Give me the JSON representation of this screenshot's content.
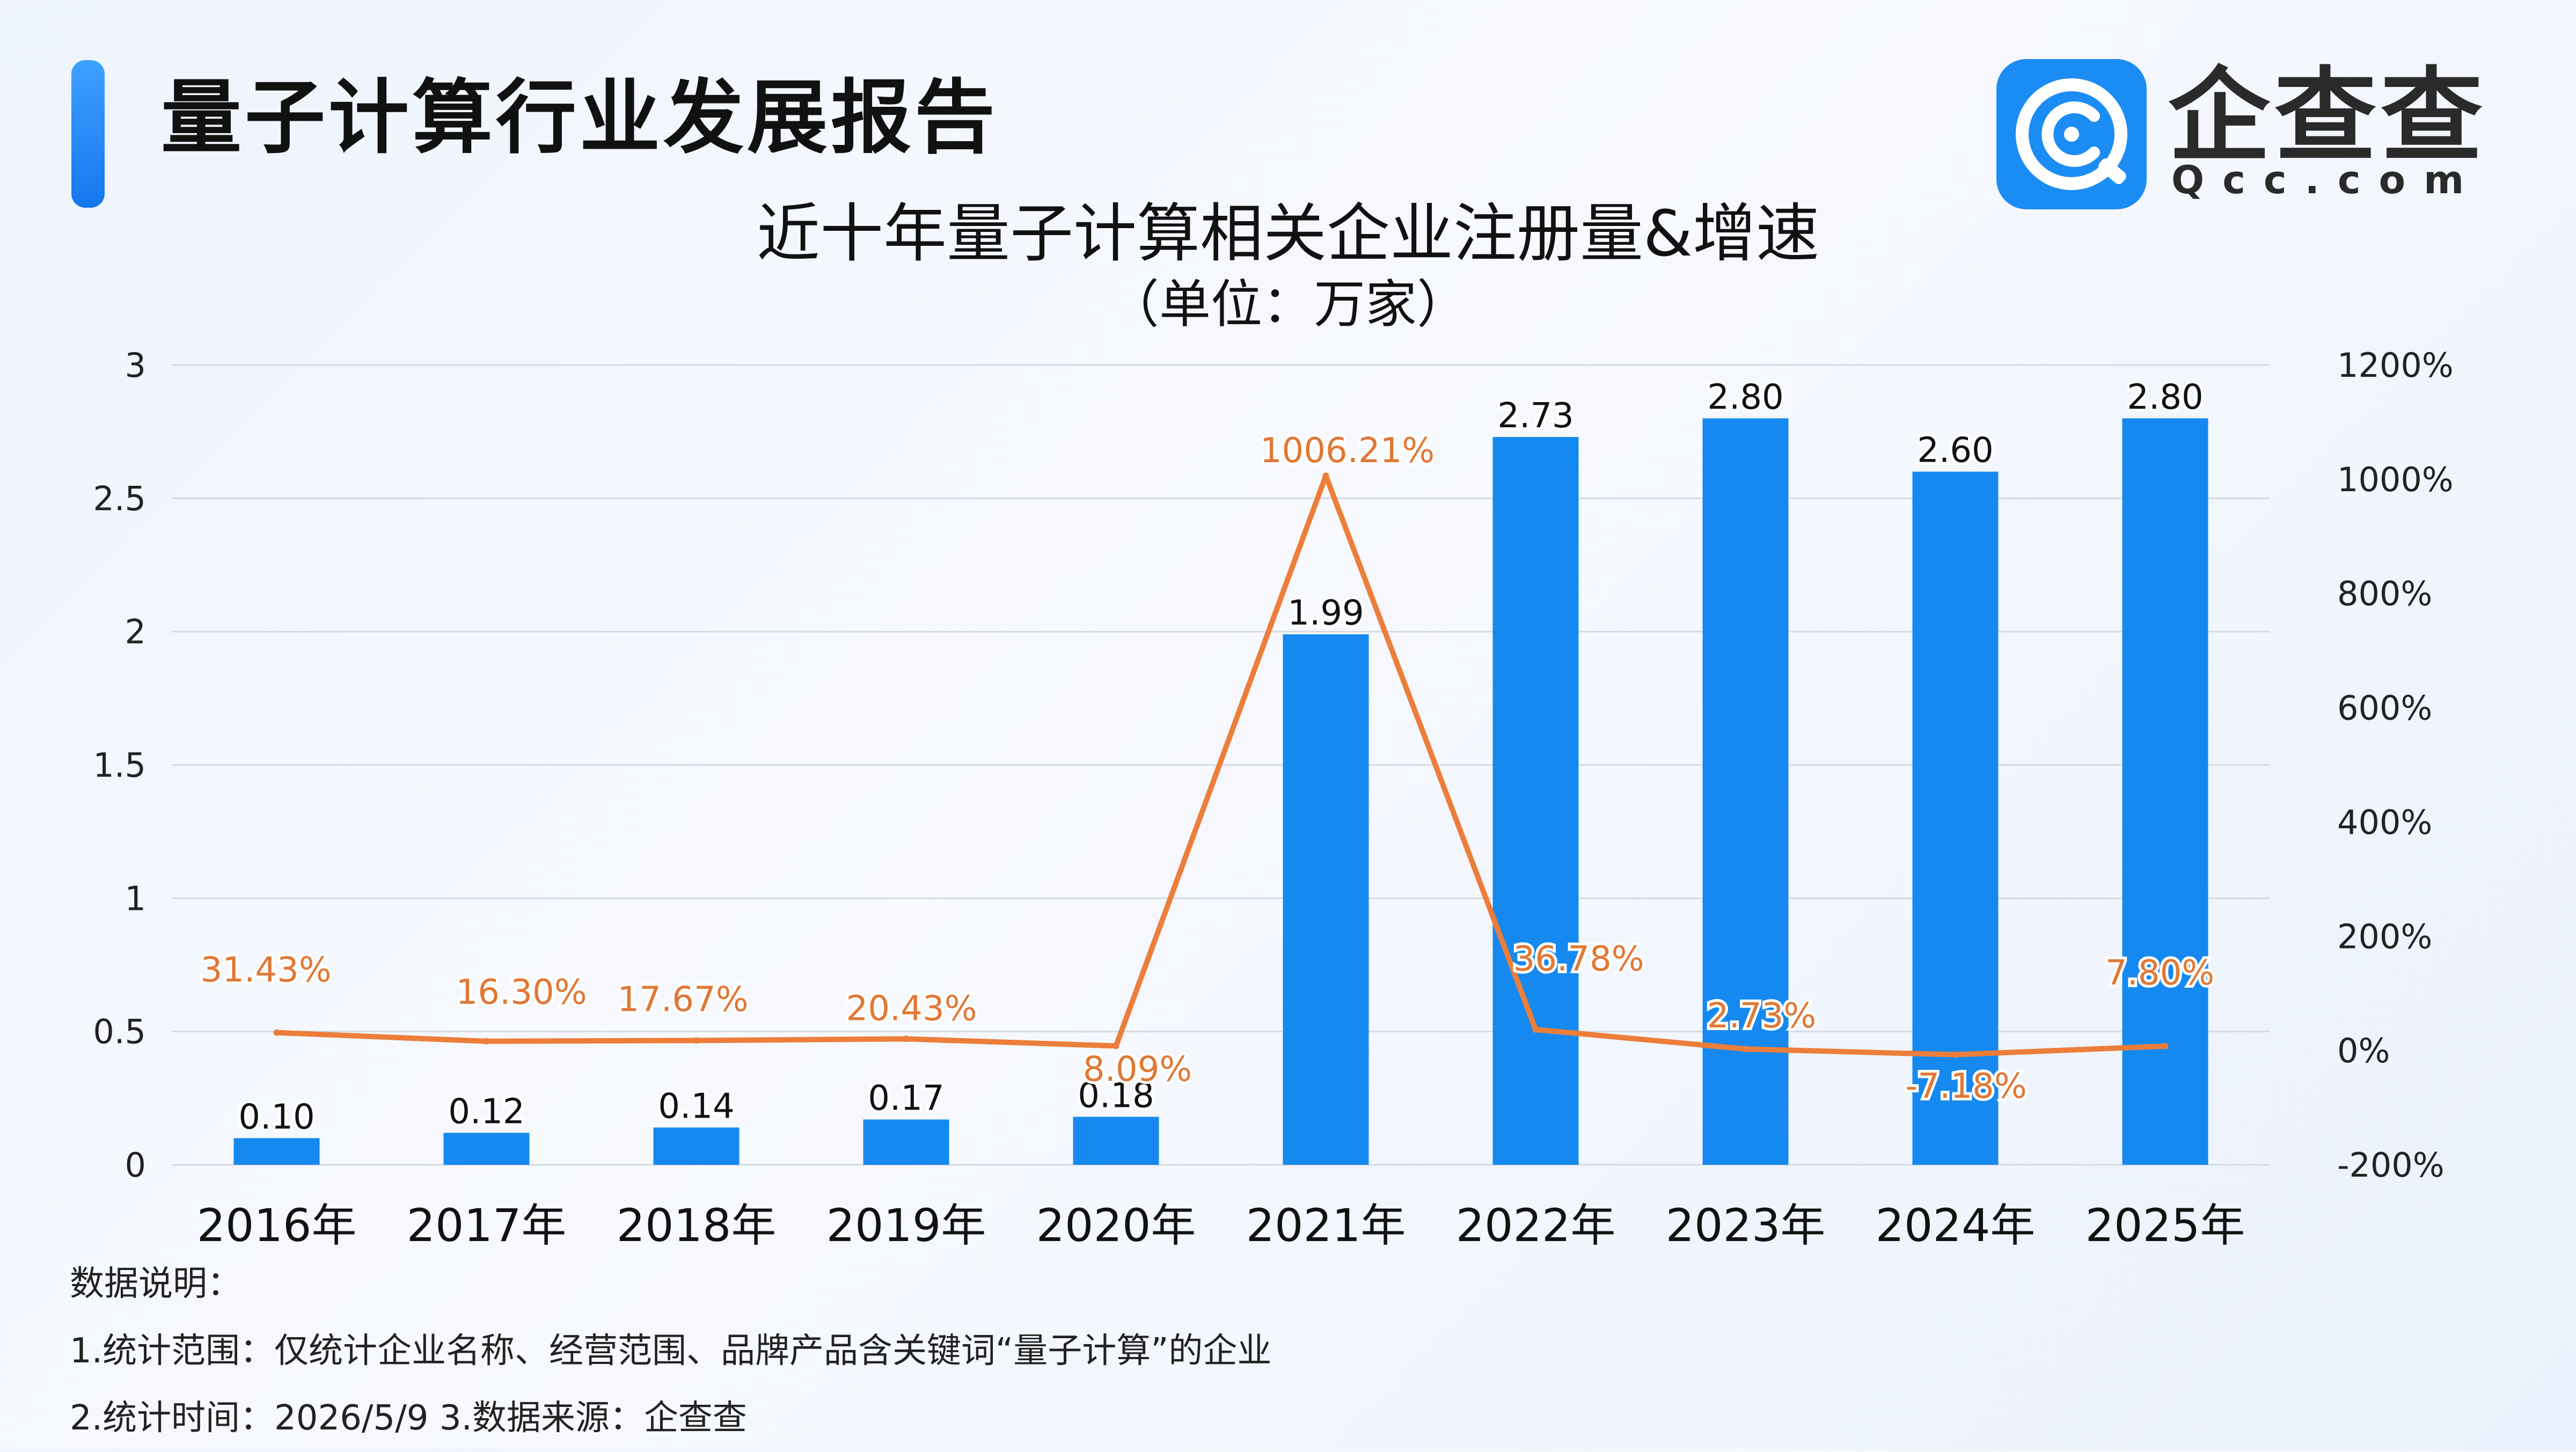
{
  "header": {
    "report_title": "量子计算行业发展报告",
    "logo_name": "企查查",
    "logo_url": "Qcc.com"
  },
  "colors": {
    "bar": "#1589ef",
    "line": "#ec7e3a",
    "line_label": "#e07835",
    "logo_bg": "#1b8cf4",
    "accent": "#1677ee"
  },
  "icons": [
    "qcc-logo-icon"
  ],
  "chart_data": {
    "type": "bar+line",
    "title": "近十年量子计算相关企业注册量&增速",
    "subtitle": "（单位：万家）",
    "categories": [
      "2016年",
      "2017年",
      "2018年",
      "2019年",
      "2020年",
      "2021年",
      "2022年",
      "2023年",
      "2024年",
      "2025年"
    ],
    "series": [
      {
        "type": "bar",
        "axis": "left",
        "values": [
          0.1,
          0.12,
          0.14,
          0.17,
          0.18,
          1.99,
          2.73,
          2.8,
          2.6,
          2.8
        ],
        "labels": [
          "0.10",
          "0.12",
          "0.14",
          "0.17",
          "0.18",
          "1.99",
          "2.73",
          "2.80",
          "2.60",
          "2.80"
        ]
      },
      {
        "type": "line",
        "axis": "right",
        "values": [
          31.43,
          16.3,
          17.67,
          20.43,
          8.09,
          1006.21,
          36.78,
          2.73,
          -7.18,
          7.8
        ],
        "labels": [
          "31.43%",
          "16.30%",
          "17.67%",
          "20.43%",
          "8.09%",
          "1006.21%",
          "36.78%",
          "2.73%",
          "-7.18%",
          "7.80%"
        ]
      }
    ],
    "y_left": {
      "min": 0,
      "max": 3,
      "ticks": [
        "0",
        "0.5",
        "1",
        "1.5",
        "2",
        "2.5",
        "3"
      ],
      "tick_values": [
        0,
        0.5,
        1,
        1.5,
        2,
        2.5,
        3
      ]
    },
    "y_right": {
      "min": -200,
      "max": 1200,
      "ticks": [
        "-200%",
        "0%",
        "200%",
        "400%",
        "600%",
        "800%",
        "1000%",
        "1200%"
      ],
      "tick_values": [
        -200,
        0,
        200,
        400,
        600,
        800,
        1000,
        1200
      ]
    },
    "grid": true,
    "legend": "none"
  },
  "notes": {
    "heading": "数据说明：",
    "line1": "1.统计范围：仅统计企业名称、经营范围、品牌产品含关键词“量子计算”的企业",
    "line2": "2.统计时间：2026/5/9  3.数据来源：企查查"
  }
}
